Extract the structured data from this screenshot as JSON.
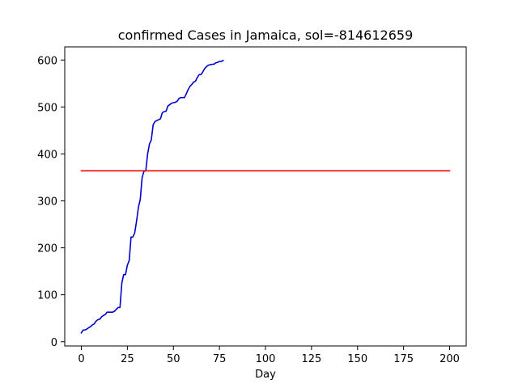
{
  "chart_data": {
    "type": "line",
    "title": "confirmed Cases in Jamaica, sol=-814612659",
    "xlabel": "Day",
    "ylabel": "",
    "xlim": [
      -9,
      209
    ],
    "ylim": [
      -9,
      628
    ],
    "x_ticks": [
      0,
      25,
      50,
      75,
      100,
      125,
      150,
      175,
      200
    ],
    "y_ticks": [
      0,
      100,
      200,
      300,
      400,
      500,
      600
    ],
    "grid": false,
    "series": [
      {
        "color": "#0000cc",
        "x": [
          0,
          1,
          2,
          3,
          4,
          5,
          6,
          7,
          8,
          9,
          10,
          11,
          12,
          13,
          14,
          15,
          16,
          17,
          18,
          19,
          20,
          21,
          22,
          23,
          24,
          25,
          26,
          27,
          28,
          29,
          30,
          31,
          32,
          33,
          34,
          35,
          36,
          37,
          38,
          39,
          40,
          41,
          42,
          43,
          44,
          45,
          46,
          47,
          48,
          49,
          50,
          51,
          52,
          53,
          54,
          55,
          56,
          57,
          58,
          59,
          60,
          61,
          62,
          63,
          64,
          65,
          66,
          67,
          68,
          69,
          70,
          71,
          72,
          73,
          74,
          75,
          76,
          77
        ],
        "y": [
          19,
          25,
          25,
          27,
          30,
          32,
          36,
          38,
          44,
          47,
          48,
          53,
          56,
          58,
          63,
          63,
          63,
          63,
          65,
          69,
          73,
          73,
          125,
          143,
          143,
          163,
          173,
          223,
          223,
          232,
          257,
          286,
          303,
          349,
          363,
          364,
          400,
          421,
          430,
          462,
          469,
          471,
          473,
          475,
          488,
          490,
          491,
          502,
          505,
          508,
          509,
          510,
          512,
          518,
          520,
          520,
          520,
          528,
          537,
          544,
          548,
          553,
          555,
          563,
          569,
          569,
          575,
          582,
          586,
          589,
          590,
          591,
          591,
          594,
          595,
          597,
          597,
          599
        ]
      },
      {
        "color": "#ee0000",
        "x": [
          0,
          200
        ],
        "y": [
          364,
          364
        ]
      }
    ]
  }
}
